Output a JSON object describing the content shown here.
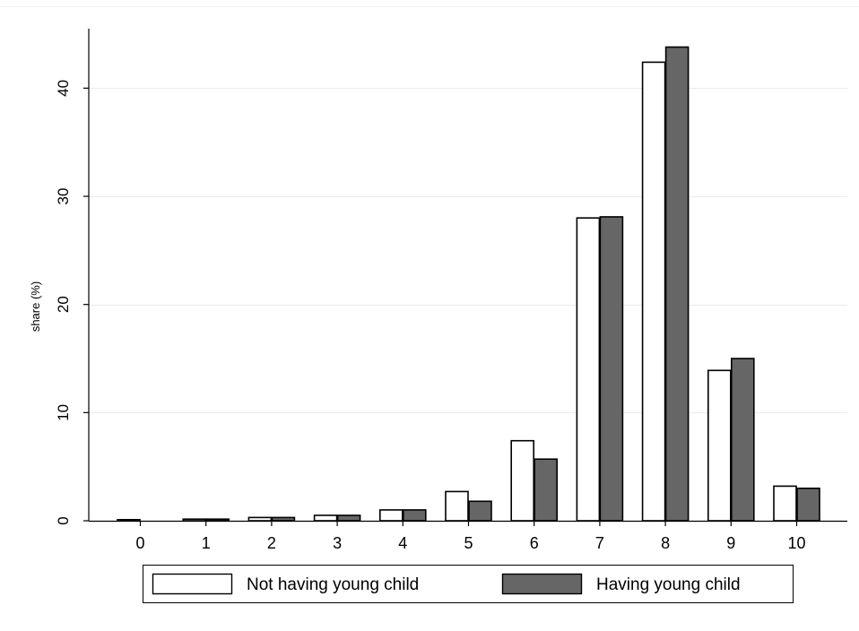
{
  "chart_data": {
    "type": "bar",
    "title": "",
    "xlabel": "",
    "ylabel": "share (%)",
    "categories": [
      "0",
      "1",
      "2",
      "3",
      "4",
      "5",
      "6",
      "7",
      "8",
      "9",
      "10"
    ],
    "y_ticks": [
      "0",
      "10",
      "20",
      "30",
      "40"
    ],
    "ylim": [
      0,
      45.5
    ],
    "grid": true,
    "legend_position": "bottom",
    "series": [
      {
        "name": "Not having young child",
        "color": "#ffffff",
        "values": [
          0.1,
          0.15,
          0.3,
          0.5,
          1.0,
          2.7,
          7.4,
          28.0,
          42.4,
          13.9,
          3.2
        ]
      },
      {
        "name": "Having young child",
        "color": "#666666",
        "values": [
          0.0,
          0.15,
          0.3,
          0.5,
          1.0,
          1.8,
          5.7,
          28.1,
          43.8,
          15.0,
          3.0
        ]
      }
    ],
    "colors": {
      "grid": "#e4eeee",
      "axis": "#000000",
      "bar_stroke": "#000000"
    }
  }
}
